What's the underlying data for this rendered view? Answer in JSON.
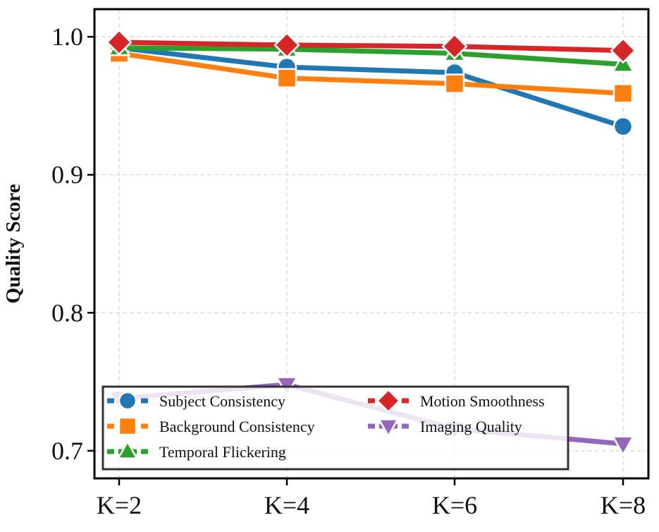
{
  "chart_data": {
    "type": "line",
    "title": "",
    "xlabel": "",
    "ylabel": "Quality Score",
    "categories": [
      "K=2",
      "K=4",
      "K=6",
      "K=8"
    ],
    "ylim": [
      0.68,
      1.02
    ],
    "yticks": [
      0.7,
      0.8,
      0.9,
      1.0
    ],
    "ytick_labels": [
      "0.7",
      "0.8",
      "0.9",
      "1.0"
    ],
    "grid": true,
    "legend_position": "lower-left",
    "series": [
      {
        "name": "Subject Consistency",
        "values": [
          0.992,
          0.978,
          0.974,
          0.935
        ],
        "color": "#1f77b4",
        "marker": "circle"
      },
      {
        "name": "Background Consistency",
        "values": [
          0.988,
          0.97,
          0.966,
          0.959
        ],
        "color": "#ff7f0e",
        "marker": "square"
      },
      {
        "name": "Temporal Flickering",
        "values": [
          0.992,
          0.991,
          0.988,
          0.98
        ],
        "color": "#2ca02c",
        "marker": "triangle-up"
      },
      {
        "name": "Motion Smoothness",
        "values": [
          0.996,
          0.994,
          0.993,
          0.99
        ],
        "color": "#d62728",
        "marker": "diamond"
      },
      {
        "name": "Imaging Quality",
        "values": [
          0.738,
          0.748,
          0.716,
          0.705
        ],
        "color": "#9467bd",
        "marker": "triangle-down"
      }
    ]
  }
}
